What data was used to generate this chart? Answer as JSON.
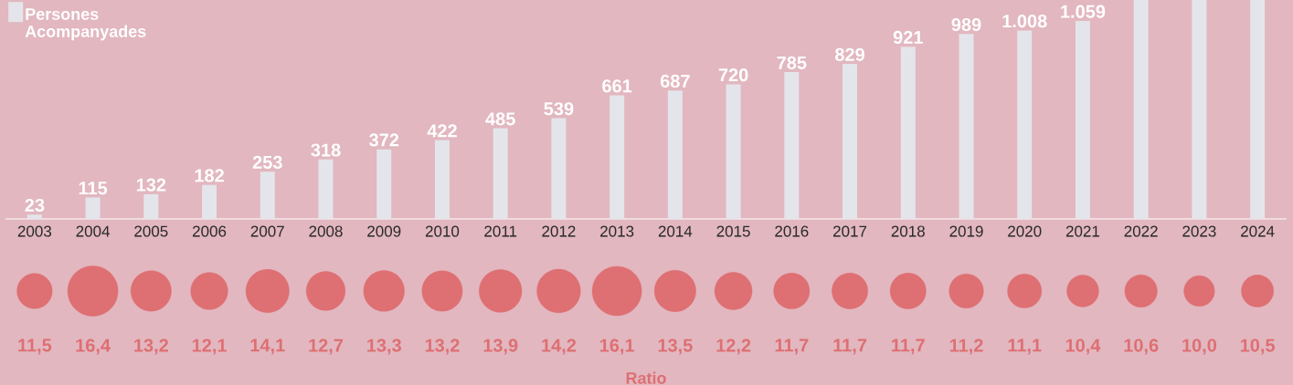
{
  "chart_data": [
    {
      "type": "bar",
      "categories": [
        "2003",
        "2004",
        "2005",
        "2006",
        "2007",
        "2008",
        "2009",
        "2010",
        "2011",
        "2012",
        "2013",
        "2014",
        "2015",
        "2016",
        "2017",
        "2018",
        "2019",
        "2020",
        "2021",
        "2022",
        "2023",
        "2024"
      ],
      "series": [
        {
          "name": "Persones Acompanyades",
          "color": "#e4e5ea",
          "values": [
            23,
            115,
            132,
            182,
            253,
            318,
            372,
            422,
            485,
            539,
            661,
            687,
            720,
            785,
            829,
            921,
            989,
            1008,
            1059,
            1171,
            1171,
            1171
          ],
          "value_labels": [
            "23",
            "115",
            "132",
            "182",
            "253",
            "318",
            "372",
            "422",
            "485",
            "539",
            "661",
            "687",
            "720",
            "785",
            "829",
            "921",
            "989",
            "1.008",
            "1.059",
            null,
            null,
            null
          ]
        }
      ],
      "ylim": [
        0,
        1171
      ],
      "legend": "top left"
    },
    {
      "type": "other",
      "xlabel": "Ratio",
      "values": [
        11.5,
        16.4,
        13.2,
        12.1,
        14.1,
        12.7,
        13.3,
        13.2,
        13.9,
        14.2,
        16.1,
        13.5,
        12.2,
        11.7,
        11.7,
        11.7,
        11.2,
        11.1,
        10.4,
        10.6,
        10.0,
        10.5
      ],
      "value_labels": [
        "11,5",
        "16,4",
        "13,2",
        "12,1",
        "14,1",
        "12,7",
        "13,3",
        "13,2",
        "13,9",
        "14,2",
        "16,1",
        "13,5",
        "12,2",
        "11,7",
        "11,7",
        "11,7",
        "11,2",
        "11,1",
        "10,4",
        "10,6",
        "10,0",
        "10,5"
      ],
      "color": "#de6f72"
    }
  ]
}
